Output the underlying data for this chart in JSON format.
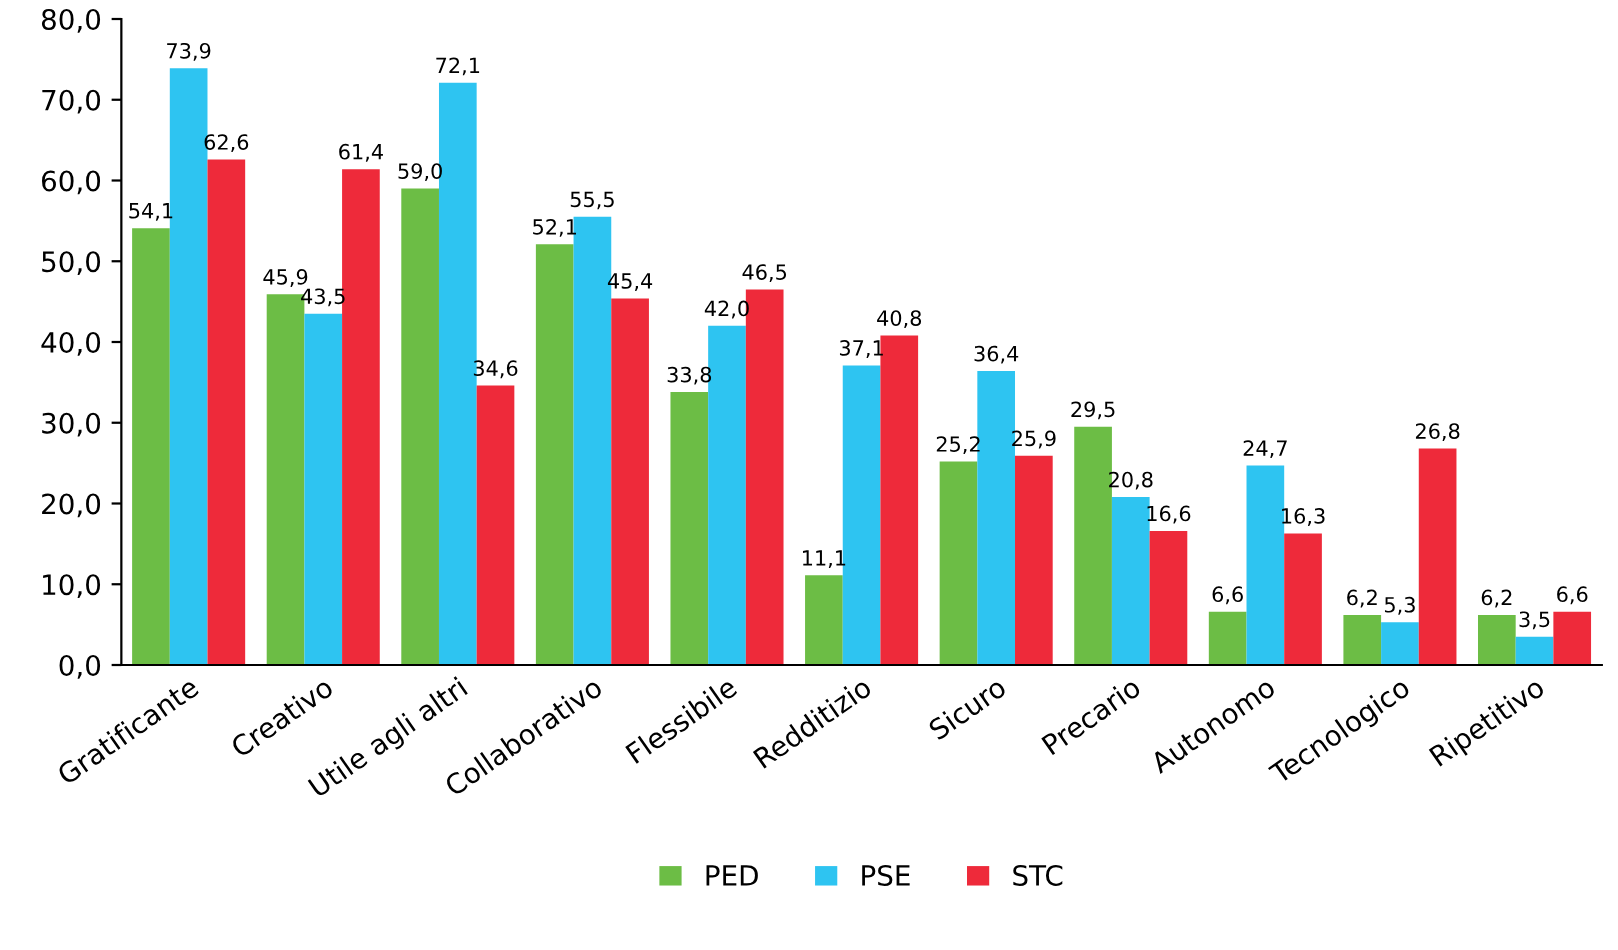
{
  "chart_data": {
    "type": "bar",
    "categories": [
      "Gratificante",
      "Creativo",
      "Utile agli altri",
      "Collaborativo",
      "Flessibile",
      "Redditizio",
      "Sicuro",
      "Precario",
      "Autonomo",
      "Tecnologico",
      "Ripetitivo"
    ],
    "series": [
      {
        "name": "PED",
        "color": "#6cbd45",
        "values": [
          54.1,
          45.9,
          59.0,
          52.1,
          33.8,
          11.1,
          25.2,
          29.5,
          6.6,
          6.2,
          6.2
        ],
        "value_labels": [
          "54,1",
          "45,9",
          "59,0",
          "52,1",
          "33,8",
          "11,1",
          "25,2",
          "29,5",
          "6,6",
          "6,2",
          "6,2"
        ]
      },
      {
        "name": "PSE",
        "color": "#2ec4f1",
        "values": [
          73.9,
          43.5,
          72.1,
          55.5,
          42.0,
          37.1,
          36.4,
          20.8,
          24.7,
          5.3,
          3.5
        ],
        "value_labels": [
          "73,9",
          "43,5",
          "72,1",
          "55,5",
          "42,0",
          "37,1",
          "36,4",
          "20,8",
          "24,7",
          "5,3",
          "3,5"
        ]
      },
      {
        "name": "STC",
        "color": "#ee2a3a",
        "values": [
          62.6,
          61.4,
          34.6,
          45.4,
          46.5,
          40.8,
          25.9,
          16.6,
          16.3,
          26.8,
          6.6
        ],
        "value_labels": [
          "62,6",
          "61,4",
          "34,6",
          "45,4",
          "46,5",
          "40,8",
          "25,9",
          "16,6",
          "16,3",
          "26,8",
          "6,6"
        ]
      }
    ],
    "ylim": [
      0,
      80
    ],
    "yticks": [
      {
        "value": 0,
        "label": "0,0"
      },
      {
        "value": 10,
        "label": "10,0"
      },
      {
        "value": 20,
        "label": "20,0"
      },
      {
        "value": 30,
        "label": "30,0"
      },
      {
        "value": 40,
        "label": "40,0"
      },
      {
        "value": 50,
        "label": "50,0"
      },
      {
        "value": 60,
        "label": "60,0"
      },
      {
        "value": 70,
        "label": "70,0"
      },
      {
        "value": 80,
        "label": "80,0"
      }
    ],
    "grid": false,
    "legend": "bottom"
  }
}
